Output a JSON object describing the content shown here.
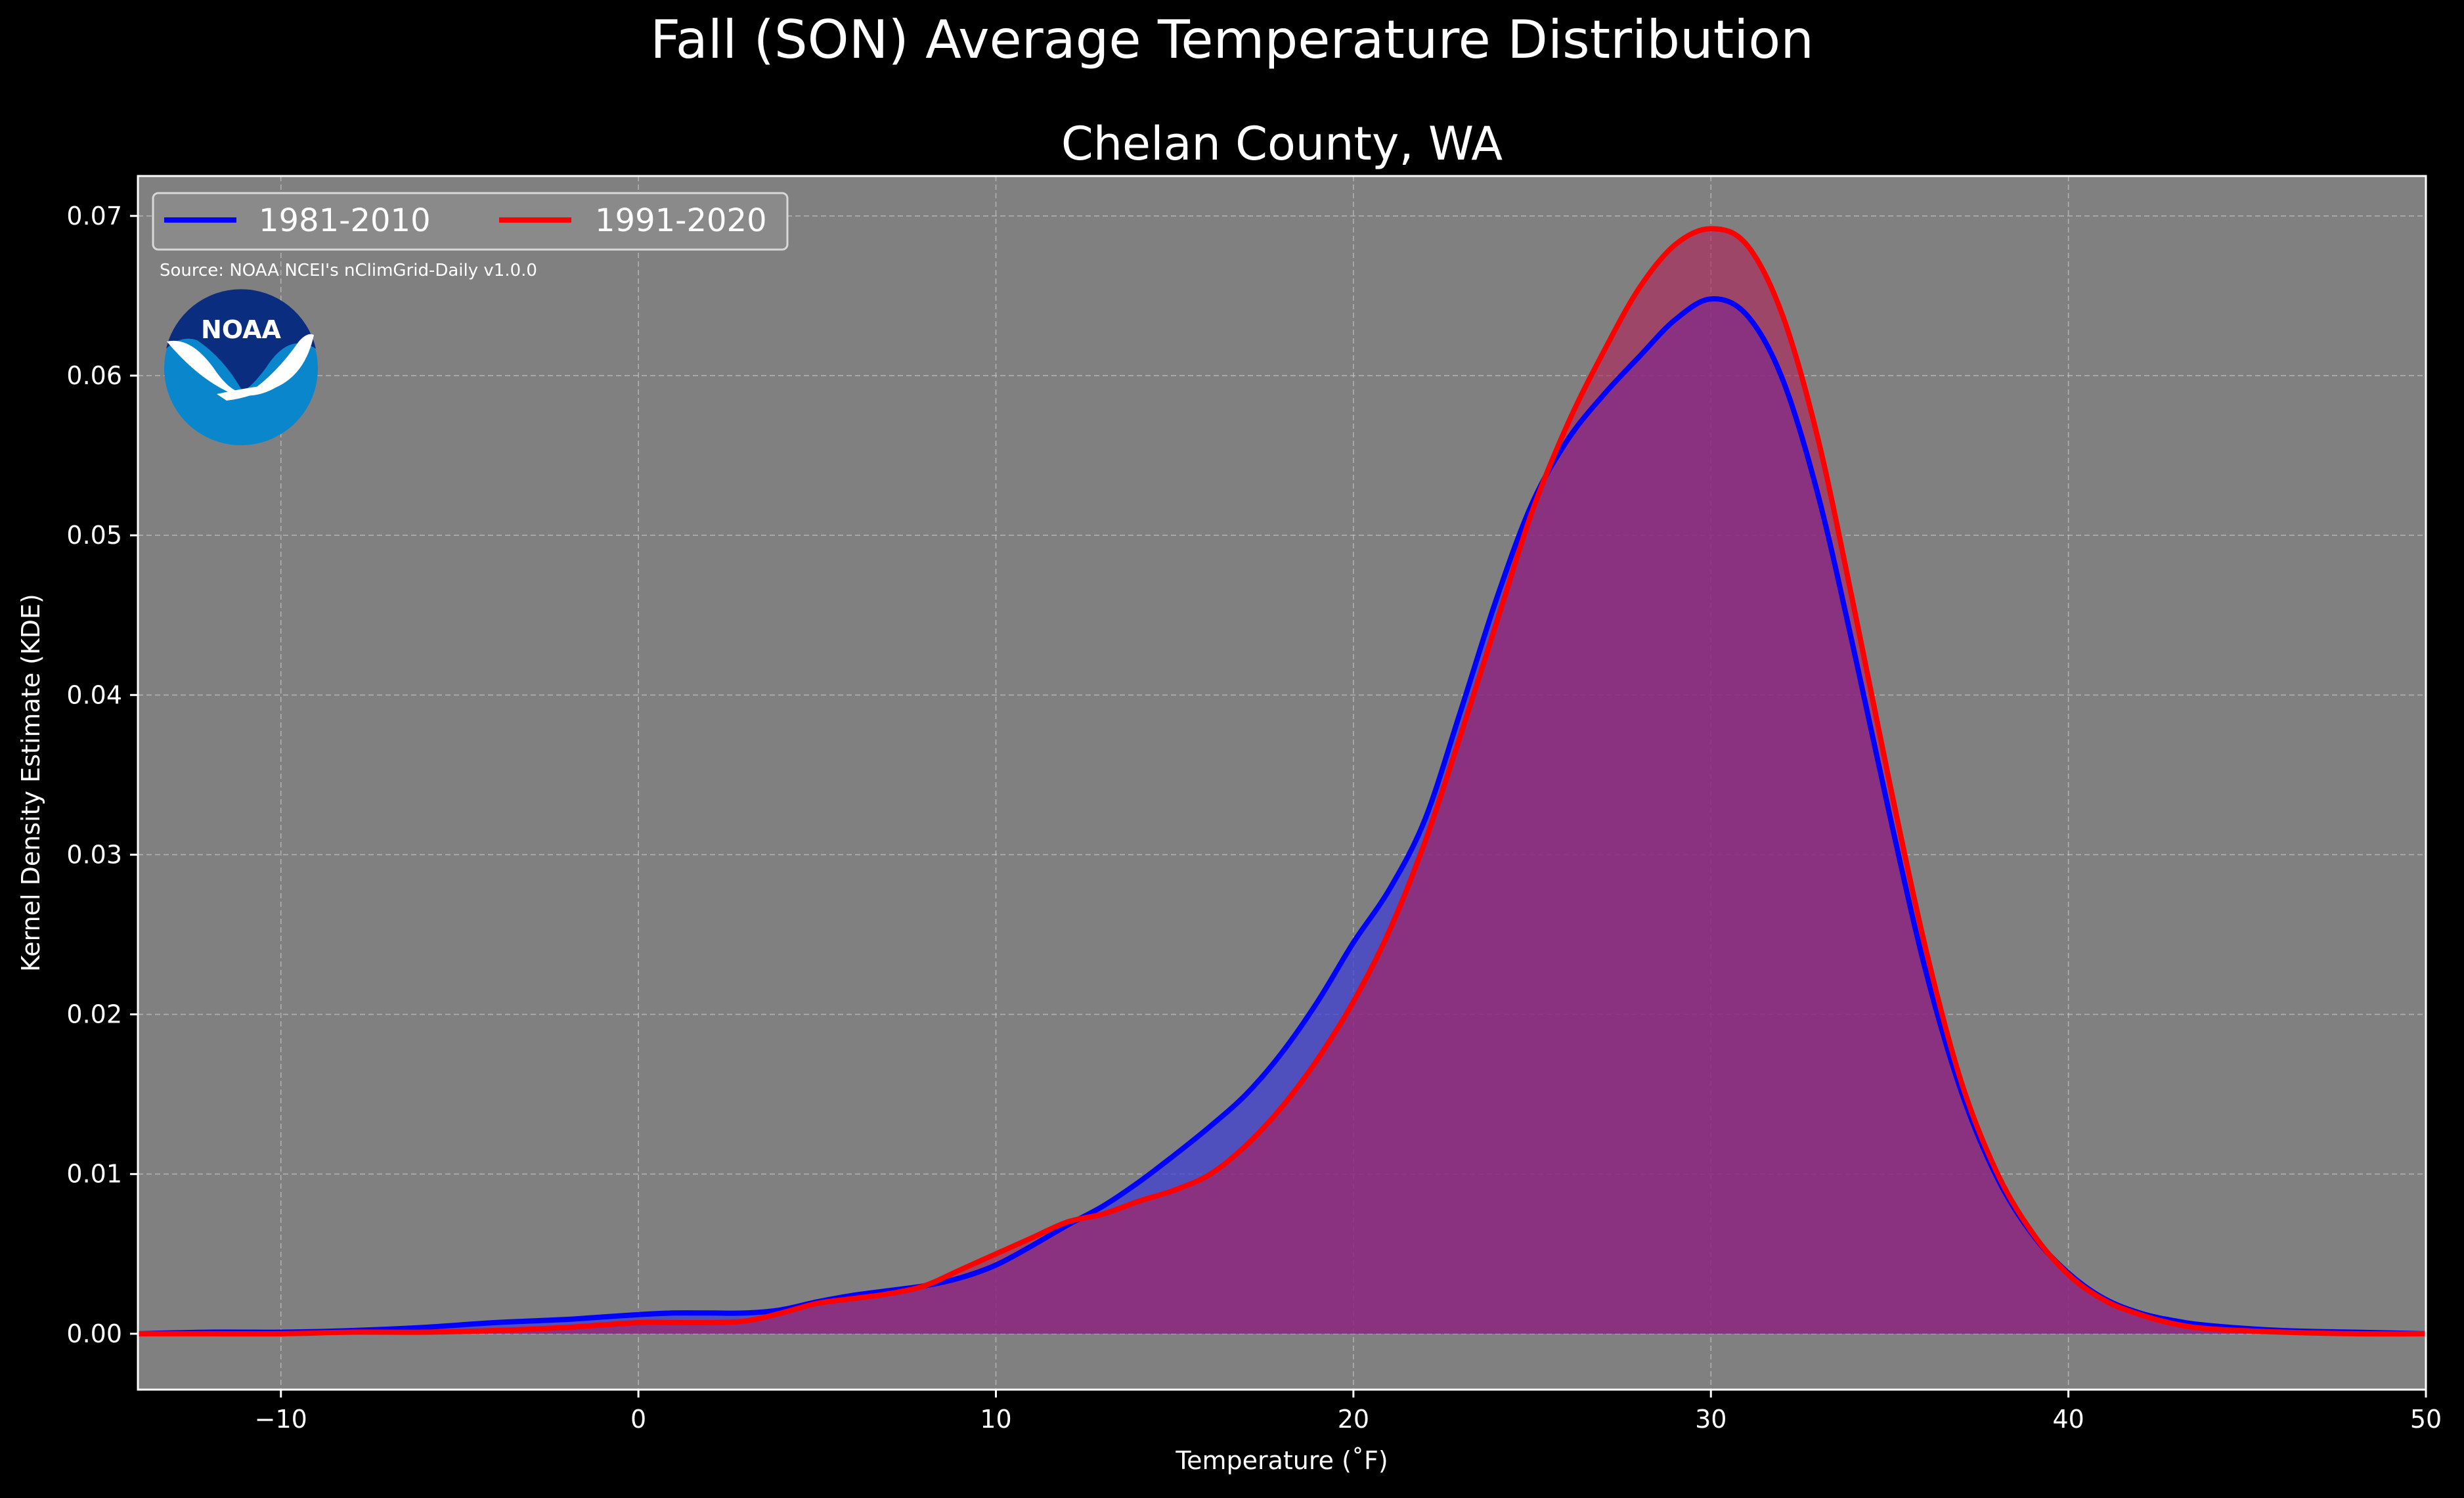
{
  "figure": {
    "suptitle": "Fall (SON) Average Temperature Distribution",
    "background": "#000000"
  },
  "chart_data": {
    "type": "area",
    "title": "Chelan County, WA",
    "xlabel": "Temperature ($^\\circ$F)",
    "xlabel_display": "Temperature (˚F)",
    "ylabel": "Kernel Density Estimate (KDE)",
    "xlim": [
      -14,
      50
    ],
    "ylim": [
      -0.0035,
      0.0725
    ],
    "xticks": [
      -10,
      0,
      10,
      20,
      30,
      40,
      50
    ],
    "xtick_labels": [
      "−10",
      "0",
      "10",
      "20",
      "30",
      "40",
      "50"
    ],
    "yticks": [
      0.0,
      0.01,
      0.02,
      0.03,
      0.04,
      0.05,
      0.06,
      0.07
    ],
    "ytick_labels": [
      "0.00",
      "0.01",
      "0.02",
      "0.03",
      "0.04",
      "0.05",
      "0.06",
      "0.07"
    ],
    "grid": true,
    "plot_background": "#808080",
    "legend": {
      "placement": "top-left",
      "ncol": 2
    },
    "annotation": "Source: NOAA NCEI's nClimGrid-Daily v1.0.0",
    "logo_text": "NOAA",
    "series": [
      {
        "name": "1981-2010",
        "line_color": "#0000ff",
        "fill_color": "#3b3bd4",
        "x": [
          -14,
          -12,
          -10,
          -8,
          -6,
          -4,
          -2,
          0,
          1,
          2,
          3,
          4,
          5,
          6,
          7,
          8,
          9,
          10,
          11,
          12,
          13,
          14,
          15,
          16,
          17,
          18,
          19,
          20,
          21,
          22,
          23,
          24,
          25,
          26,
          27,
          28,
          29,
          30,
          31,
          32,
          33,
          34,
          35,
          36,
          37,
          38,
          39,
          40,
          41,
          42,
          43,
          44,
          46,
          48,
          50
        ],
        "y": [
          0.0,
          0.0001,
          0.0001,
          0.0002,
          0.0004,
          0.0007,
          0.0009,
          0.0012,
          0.0013,
          0.0013,
          0.0013,
          0.0015,
          0.002,
          0.0024,
          0.0027,
          0.003,
          0.0035,
          0.0043,
          0.0055,
          0.0068,
          0.008,
          0.0095,
          0.0112,
          0.013,
          0.015,
          0.0176,
          0.0208,
          0.0245,
          0.0278,
          0.0322,
          0.039,
          0.046,
          0.052,
          0.056,
          0.0588,
          0.0612,
          0.0635,
          0.0648,
          0.0638,
          0.0598,
          0.0525,
          0.0428,
          0.0325,
          0.0228,
          0.0152,
          0.0098,
          0.0062,
          0.0038,
          0.0022,
          0.0013,
          0.0008,
          0.0005,
          0.0002,
          0.0001,
          0.0
        ]
      },
      {
        "name": "1991-2020",
        "line_color": "#ff0000",
        "fill_color": "#b31f56",
        "x": [
          -14,
          -12,
          -10,
          -8,
          -6,
          -4,
          -2,
          0,
          1,
          2,
          3,
          4,
          5,
          6,
          7,
          8,
          9,
          10,
          11,
          12,
          13,
          14,
          15,
          16,
          17,
          18,
          19,
          20,
          21,
          22,
          23,
          24,
          25,
          26,
          27,
          28,
          29,
          30,
          31,
          32,
          33,
          34,
          35,
          36,
          37,
          38,
          39,
          40,
          41,
          42,
          43,
          44,
          46,
          48,
          50
        ],
        "y": [
          0.0,
          0.0,
          0.0,
          0.0001,
          0.0001,
          0.0002,
          0.0004,
          0.0007,
          0.0007,
          0.0007,
          0.0008,
          0.0013,
          0.0019,
          0.0022,
          0.0025,
          0.003,
          0.004,
          0.005,
          0.006,
          0.007,
          0.0075,
          0.0083,
          0.009,
          0.01,
          0.0118,
          0.0142,
          0.0172,
          0.0208,
          0.0252,
          0.0308,
          0.0375,
          0.0445,
          0.0515,
          0.057,
          0.0615,
          0.0655,
          0.0682,
          0.0692,
          0.0682,
          0.0638,
          0.056,
          0.0455,
          0.0345,
          0.0242,
          0.0158,
          0.0101,
          0.0063,
          0.0037,
          0.0021,
          0.0012,
          0.0006,
          0.0003,
          0.0001,
          0.0,
          0.0
        ]
      }
    ]
  }
}
